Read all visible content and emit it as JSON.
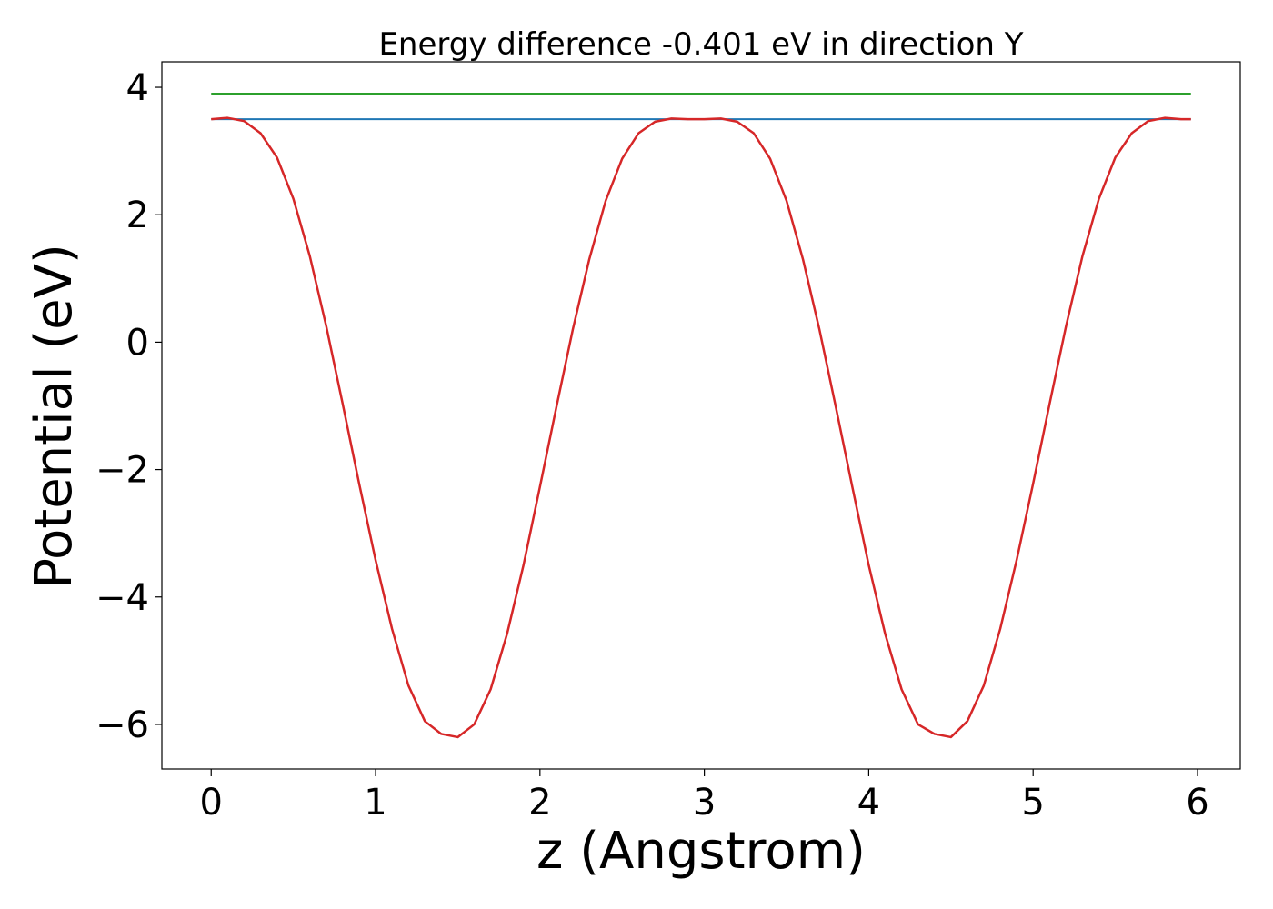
{
  "chart_data": {
    "type": "line",
    "title": "Energy difference -0.401 eV in direction Y",
    "xlabel": "z (Angstrom)",
    "ylabel": "Potential (eV)",
    "xlim": [
      -0.3,
      6.26
    ],
    "ylim": [
      -6.7,
      4.4
    ],
    "xticks": [
      0,
      1,
      2,
      3,
      4,
      5,
      6
    ],
    "xtick_labels": [
      "0",
      "1",
      "2",
      "3",
      "4",
      "5",
      "6"
    ],
    "yticks": [
      -6,
      -4,
      -2,
      0,
      2,
      4
    ],
    "ytick_labels": [
      "−6",
      "−4",
      "−2",
      "0",
      "2",
      "4"
    ],
    "grid": false,
    "series": [
      {
        "color": "#d62728",
        "x": [
          0,
          0.1,
          0.2,
          0.3,
          0.4,
          0.5,
          0.6,
          0.7,
          0.8,
          0.9,
          1.0,
          1.1,
          1.2,
          1.3,
          1.4,
          1.5,
          1.6,
          1.7,
          1.8,
          1.9,
          2.0,
          2.1,
          2.2,
          2.3,
          2.4,
          2.5,
          2.6,
          2.7,
          2.8,
          2.9,
          3.0,
          3.1,
          3.2,
          3.3,
          3.4,
          3.5,
          3.6,
          3.7,
          3.8,
          3.9,
          4.0,
          4.1,
          4.2,
          4.3,
          4.4,
          4.5,
          4.6,
          4.7,
          4.8,
          4.9,
          5.0,
          5.1,
          5.2,
          5.3,
          5.4,
          5.5,
          5.6,
          5.7,
          5.8,
          5.9,
          5.96
        ],
        "y": [
          3.5,
          3.52,
          3.47,
          3.28,
          2.9,
          2.25,
          1.35,
          0.25,
          -0.97,
          -2.22,
          -3.42,
          -4.5,
          -5.39,
          -5.95,
          -6.15,
          -6.2,
          -6.0,
          -5.45,
          -4.58,
          -3.5,
          -2.27,
          -1.02,
          0.2,
          1.3,
          2.22,
          2.88,
          3.28,
          3.46,
          3.51,
          3.5,
          3.5,
          3.51,
          3.46,
          3.28,
          2.88,
          2.22,
          1.3,
          0.2,
          -1.02,
          -2.27,
          -3.5,
          -4.58,
          -5.45,
          -6.0,
          -6.15,
          -6.2,
          -5.95,
          -5.39,
          -4.5,
          -3.42,
          -2.22,
          -0.97,
          0.25,
          1.35,
          2.25,
          2.9,
          3.28,
          3.47,
          3.52,
          3.5,
          3.5
        ]
      },
      {
        "color": "#1f77b4",
        "x": [
          0,
          5.96
        ],
        "y": [
          3.5,
          3.5
        ]
      },
      {
        "color": "#2ca02c",
        "x": [
          0,
          5.96
        ],
        "y": [
          3.9,
          3.9
        ]
      }
    ]
  }
}
